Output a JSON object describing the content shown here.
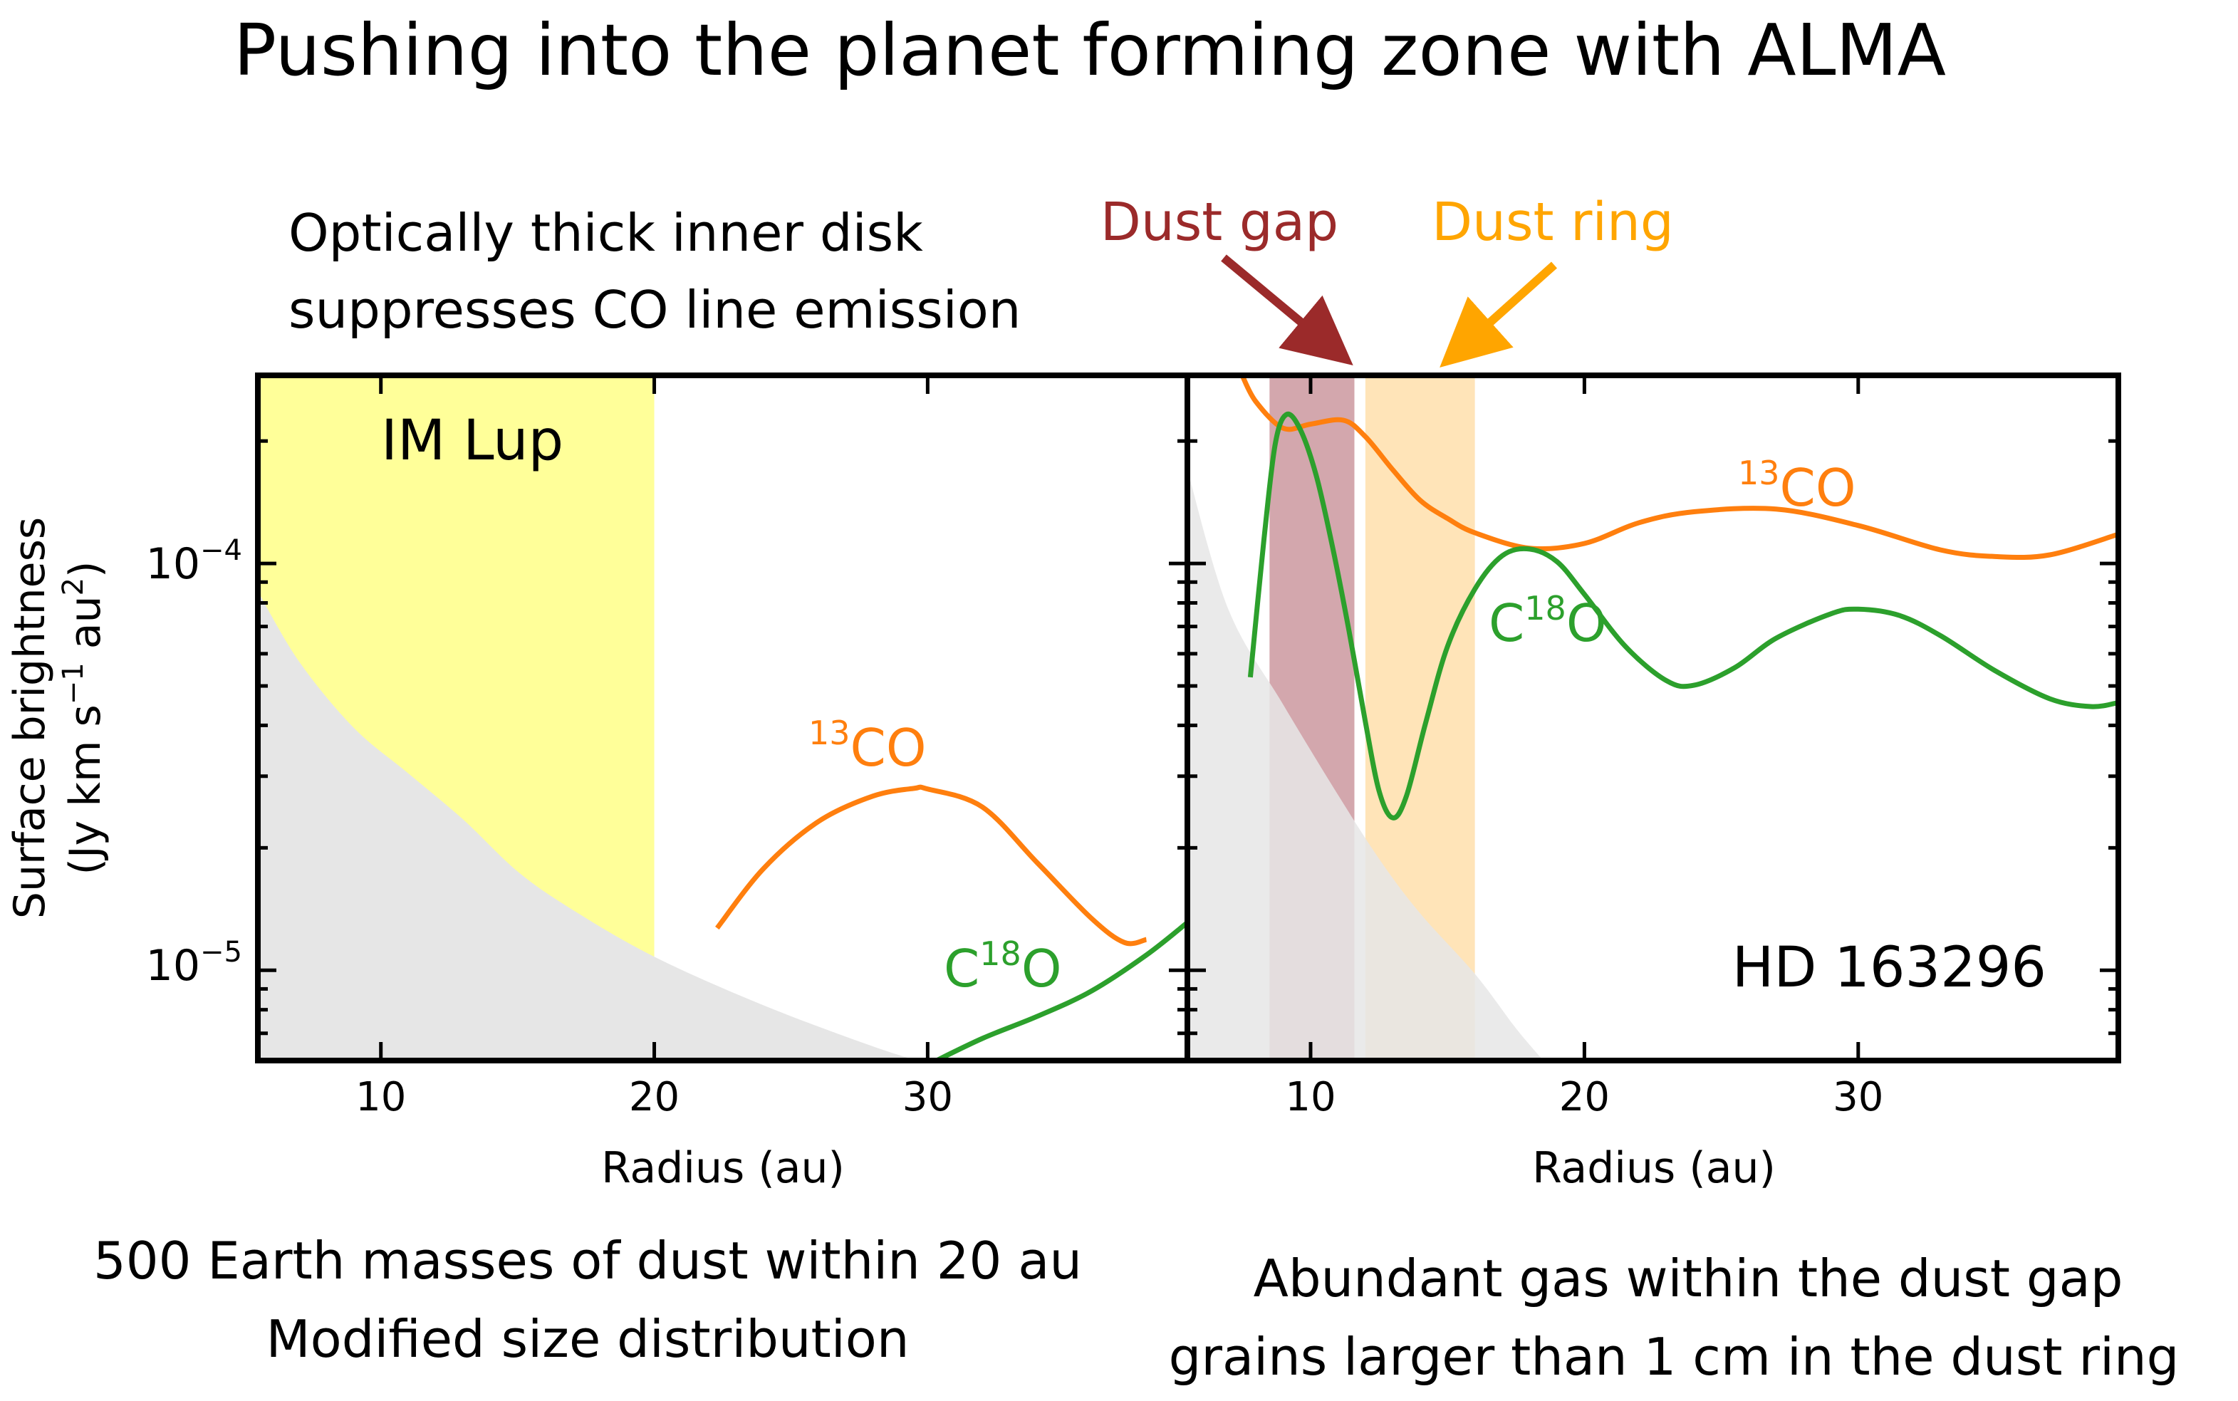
{
  "figure_title": "Pushing into the planet forming zone with ALMA",
  "annotations": {
    "left_top_line1": "Optically thick inner disk",
    "left_top_line2": "suppresses CO line emission",
    "dust_gap": "Dust gap",
    "dust_ring": "Dust ring",
    "left_bottom_line1": "500 Earth masses of dust within 20 au",
    "left_bottom_line2": "Modified size distribution",
    "right_bottom_line1": "Abundant gas within the dust gap",
    "right_bottom_line2": "grains larger than 1 cm  in the dust ring"
  },
  "colors": {
    "co13": "#ff7f0e",
    "c18o": "#2ca02c",
    "optically_thick_region": "#ffff99",
    "excluded_region": "#e6e6e6",
    "dust_gap": "#c48a92",
    "dust_ring": "#ffdba0",
    "gap_arrow": "#9b2a2a",
    "ring_arrow": "#ffa500"
  },
  "y_axis": {
    "label_line1": "Surface brightness",
    "label_line2": "(Jy km s",
    "label_sup1": "−1",
    "label_mid": " au",
    "label_sup2": "2",
    "label_end": ")",
    "ticks": [
      {
        "base": "10",
        "exp": "−4",
        "value": 0.0001
      },
      {
        "base": "10",
        "exp": "−5",
        "value": 1e-05
      }
    ]
  },
  "chart_data": [
    {
      "type": "line",
      "name": "IM Lup",
      "xlabel": "Radius (au)",
      "xlim": [
        5.5,
        39.5
      ],
      "ylim": [
        6e-06,
        0.00029
      ],
      "yscale": "log",
      "x_ticks": [
        10,
        20,
        30
      ],
      "shaded_regions": [
        {
          "label": "optically_thick_region",
          "x_from": 5.5,
          "x_to": 20,
          "color": "#ffff99"
        }
      ],
      "lower_limit_curve": {
        "x": [
          5.5,
          7,
          9,
          11,
          13,
          15,
          17,
          20,
          24,
          28,
          30
        ],
        "y": [
          8.55e-05,
          5.75e-05,
          3.95e-05,
          3.05e-05,
          2.35e-05,
          1.75e-05,
          1.41e-05,
          1.08e-05,
          8.2e-06,
          6.5e-06,
          5.9e-06
        ]
      },
      "series": [
        {
          "name": "¹³CO",
          "label_base": "13",
          "label_text": "CO",
          "color": "#ff7f0e",
          "x": [
            22.3,
            24,
            26,
            28,
            29.5,
            30,
            32,
            34,
            36,
            37.2,
            38
          ],
          "y": [
            1.27e-05,
            1.78e-05,
            2.32e-05,
            2.68e-05,
            2.8e-05,
            2.79e-05,
            2.52e-05,
            1.84e-05,
            1.34e-05,
            1.17e-05,
            1.19e-05
          ]
        },
        {
          "name": "C¹⁸O",
          "label_base": "18",
          "label_text_pre": "C",
          "label_text_post": "O",
          "color": "#2ca02c",
          "x": [
            30.1,
            32,
            34,
            36,
            38,
            39.5
          ],
          "y": [
            5.9e-06,
            6.8e-06,
            7.7e-06,
            8.9e-06,
            1.09e-05,
            1.31e-05
          ]
        }
      ]
    },
    {
      "type": "line",
      "name": "HD 163296",
      "xlabel": "Radius (au)",
      "xlim": [
        5.5,
        39.5
      ],
      "ylim": [
        6e-06,
        0.00029
      ],
      "yscale": "log",
      "x_ticks": [
        10,
        20,
        30
      ],
      "shaded_regions": [
        {
          "label": "dust_gap",
          "x_from": 8.5,
          "x_to": 11.6,
          "color": "#c48a92"
        },
        {
          "label": "dust_ring",
          "x_from": 12,
          "x_to": 16,
          "color": "#ffdba0"
        }
      ],
      "lower_limit_curve": {
        "x": [
          5.5,
          7,
          9,
          11,
          12.5,
          14,
          16,
          17.5,
          18.5
        ],
        "y": [
          0.00017,
          7.7e-05,
          4.5e-05,
          2.7e-05,
          1.88e-05,
          1.38e-05,
          9.8e-06,
          7.2e-06,
          6e-06
        ]
      },
      "series": [
        {
          "name": "¹³CO",
          "label_base": "13",
          "label_text": "CO",
          "color": "#ff7f0e",
          "x": [
            7.5,
            8,
            9,
            10,
            11.2,
            12,
            13,
            14,
            15,
            16,
            18,
            20,
            22,
            24,
            27,
            30,
            33,
            35,
            37,
            39.5
          ],
          "y": [
            0.00029,
            0.00025,
            0.000215,
            0.00022,
            0.000225,
            0.000205,
            0.00017,
            0.000143,
            0.000129,
            0.000119,
            0.000109,
            0.000112,
            0.000126,
            0.000134,
            0.000136,
            0.000124,
            0.000108,
            0.000104,
            0.000105,
            0.000118
          ]
        },
        {
          "name": "C¹⁸O",
          "label_base": "18",
          "label_text_pre": "C",
          "label_text_post": "O",
          "color": "#2ca02c",
          "x": [
            7.8,
            8.3,
            8.7,
            9.1,
            9.6,
            10.2,
            10.8,
            11.4,
            12,
            12.5,
            13,
            13.5,
            14.2,
            15,
            16,
            17,
            18,
            19,
            20,
            21.5,
            23,
            24,
            25.5,
            27,
            29,
            30,
            31.5,
            33,
            35,
            37,
            38.5,
            39.5
          ],
          "y": [
            5.25e-05,
            0.000115,
            0.000195,
            0.000232,
            0.000215,
            0.000165,
            0.00011,
            6.85e-05,
            4.08e-05,
            2.76e-05,
            2.37e-05,
            2.68e-05,
            4.05e-05,
            6.25e-05,
            8.65e-05,
            0.0001045,
            0.0001085,
            0.000101,
            8.4e-05,
            6.25e-05,
            5.15e-05,
            5.02e-05,
            5.55e-05,
            6.55e-05,
            7.52e-05,
            7.72e-05,
            7.45e-05,
            6.65e-05,
            5.45e-05,
            4.65e-05,
            4.45e-05,
            4.55e-05
          ]
        }
      ]
    }
  ]
}
